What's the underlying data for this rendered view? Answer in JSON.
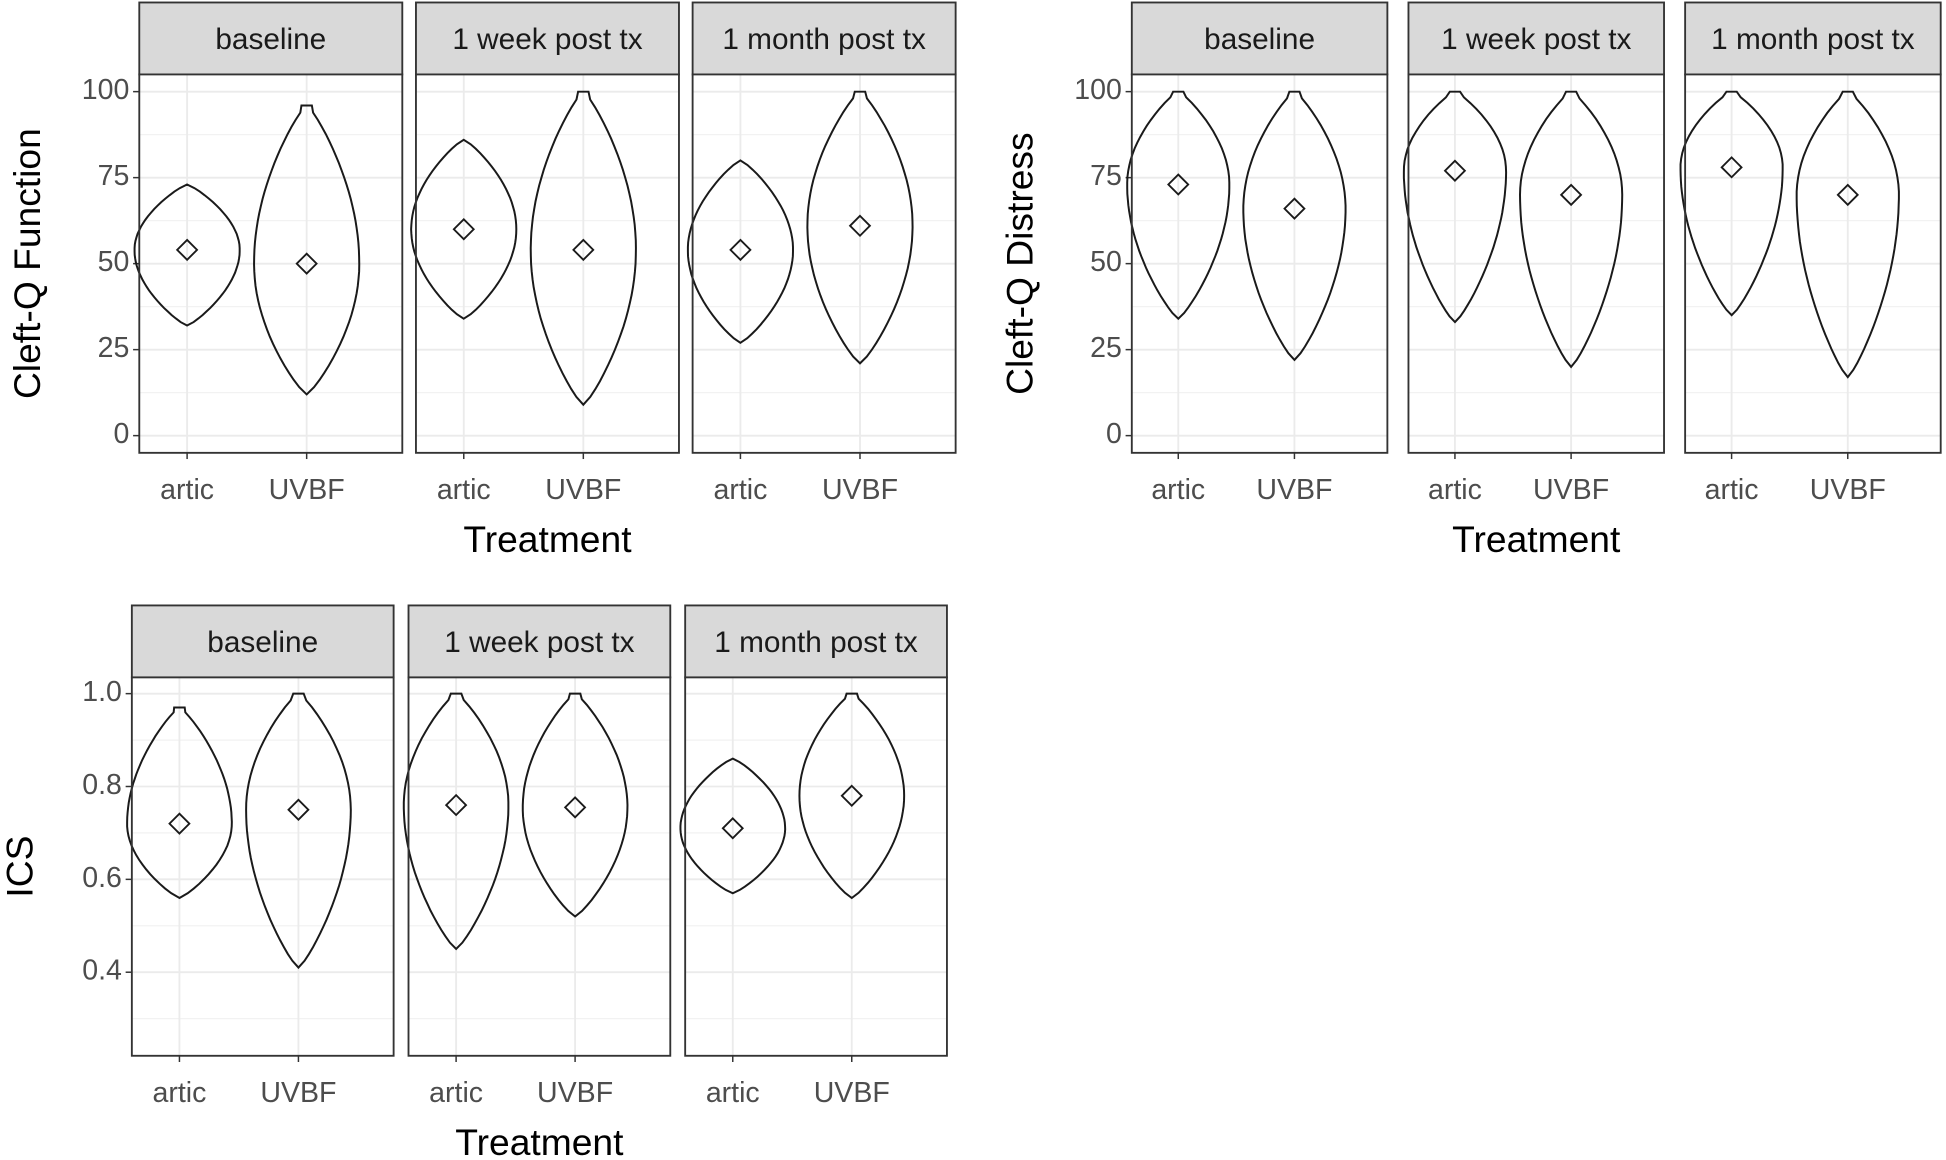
{
  "chart_data": [
    {
      "type": "violin",
      "y_label": "Cleft-Q Function",
      "x_label": "Treatment",
      "facets": [
        "baseline",
        "1 week post tx",
        "1 month post tx"
      ],
      "categories": [
        "artic",
        "UVBF"
      ],
      "ylim": [
        -5,
        105
      ],
      "yticks": [
        0,
        25,
        50,
        75,
        100
      ],
      "grid": true,
      "color": "#1a1a1a",
      "panels": [
        [
          {
            "min": 32,
            "max": 73,
            "mean": 54
          },
          {
            "min": 12,
            "max": 96,
            "mean": 50
          }
        ],
        [
          {
            "min": 34,
            "max": 86,
            "mean": 60
          },
          {
            "min": 9,
            "max": 100,
            "mean": 54
          }
        ],
        [
          {
            "min": 27,
            "max": 80,
            "mean": 54
          },
          {
            "min": 21,
            "max": 100,
            "mean": 61
          }
        ]
      ]
    },
    {
      "type": "violin",
      "y_label": "Cleft-Q Distress",
      "x_label": "Treatment",
      "facets": [
        "baseline",
        "1 week post tx",
        "1 month post tx"
      ],
      "categories": [
        "artic",
        "UVBF"
      ],
      "ylim": [
        -5,
        105
      ],
      "yticks": [
        0,
        25,
        50,
        75,
        100
      ],
      "grid": true,
      "color": "#1a1a1a",
      "panels": [
        [
          {
            "min": 34,
            "max": 100,
            "mean": 73
          },
          {
            "min": 22,
            "max": 100,
            "mean": 66
          }
        ],
        [
          {
            "min": 33,
            "max": 100,
            "mean": 77
          },
          {
            "min": 20,
            "max": 100,
            "mean": 70
          }
        ],
        [
          {
            "min": 35,
            "max": 100,
            "mean": 78
          },
          {
            "min": 17,
            "max": 100,
            "mean": 70
          }
        ]
      ]
    },
    {
      "type": "violin",
      "y_label": "ICS",
      "x_label": "Treatment",
      "facets": [
        "baseline",
        "1 week post tx",
        "1 month post tx"
      ],
      "categories": [
        "artic",
        "UVBF"
      ],
      "ylim": [
        0.22,
        1.035
      ],
      "yticks": [
        0.4,
        0.6,
        0.8,
        {
          "value": 1,
          "label": "1.0"
        }
      ],
      "grid": true,
      "color": "#1a1a1a",
      "panels": [
        [
          {
            "min": 0.56,
            "max": 0.97,
            "mean": 0.72
          },
          {
            "min": 0.41,
            "max": 1,
            "mean": 0.75
          }
        ],
        [
          {
            "min": 0.45,
            "max": 1,
            "mean": 0.76
          },
          {
            "min": 0.52,
            "max": 1,
            "mean": 0.755
          }
        ],
        [
          {
            "min": 0.57,
            "max": 0.86,
            "mean": 0.71
          },
          {
            "min": 0.56,
            "max": 1,
            "mean": 0.78
          }
        ]
      ]
    }
  ]
}
